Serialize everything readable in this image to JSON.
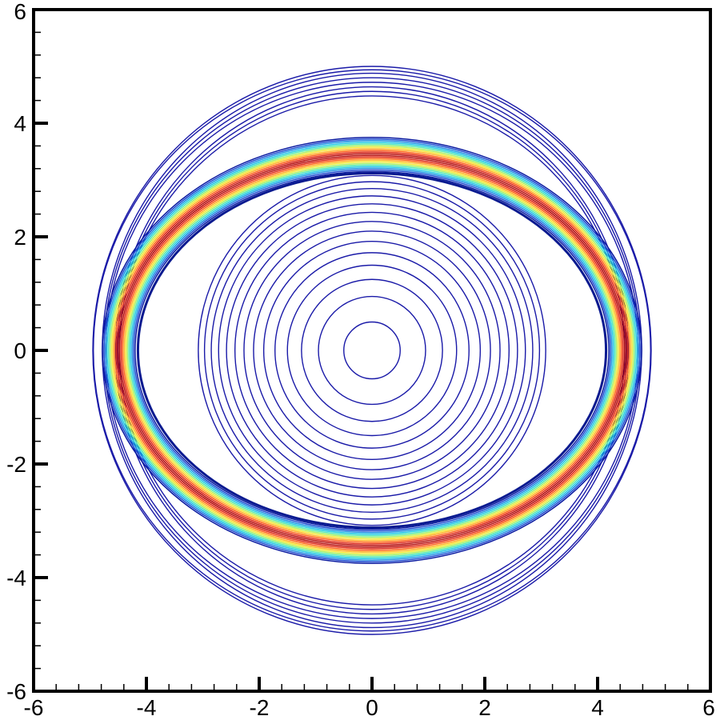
{
  "chart_data": {
    "type": "contour",
    "title": "",
    "xlabel": "",
    "ylabel": "",
    "xlim": [
      -6,
      6
    ],
    "ylim": [
      -6,
      6
    ],
    "grid": false,
    "legend": "none",
    "x_ticks": [
      -6,
      -4,
      -2,
      0,
      2,
      4,
      6
    ],
    "y_ticks": [
      -6,
      -4,
      -2,
      0,
      2,
      4,
      6
    ],
    "x_tick_labels": [
      "-6",
      "-4",
      "-2",
      "0",
      "2",
      "4",
      "6"
    ],
    "y_tick_labels": [
      "-6",
      "-4",
      "-2",
      "0",
      "2",
      "4",
      "6"
    ],
    "minor_tick_step": 0.4,
    "colormap": [
      "#0a1aa0",
      "#1e50d8",
      "#18a8e8",
      "#20e0e0",
      "#88f070",
      "#f0f030",
      "#ffb020",
      "#ff5010",
      "#d01010",
      "#a00000"
    ],
    "interior_circles": {
      "color": "#1a1aa8",
      "center": [
        0,
        0
      ],
      "radii": [
        0.5,
        0.95,
        1.25,
        1.5,
        1.72,
        1.92,
        2.1,
        2.27,
        2.43,
        2.58,
        2.72,
        2.85,
        2.97,
        3.08
      ]
    },
    "outer_shell": {
      "color": "#1a1aa8",
      "center": [
        0,
        0
      ],
      "radii": [
        4.48,
        4.56,
        4.64,
        4.72,
        4.8,
        4.88,
        4.94,
        5.0
      ]
    },
    "ring_band": {
      "center": [
        0,
        0
      ],
      "inner_semi_axes": [
        4.2,
        3.15
      ],
      "outer_semi_axes": [
        4.78,
        3.75
      ],
      "peak_color": "#c00000",
      "contour_count": 22
    },
    "inner_boundary": {
      "color": "#0a1a90",
      "semi_axes": [
        4.15,
        3.12
      ]
    }
  }
}
